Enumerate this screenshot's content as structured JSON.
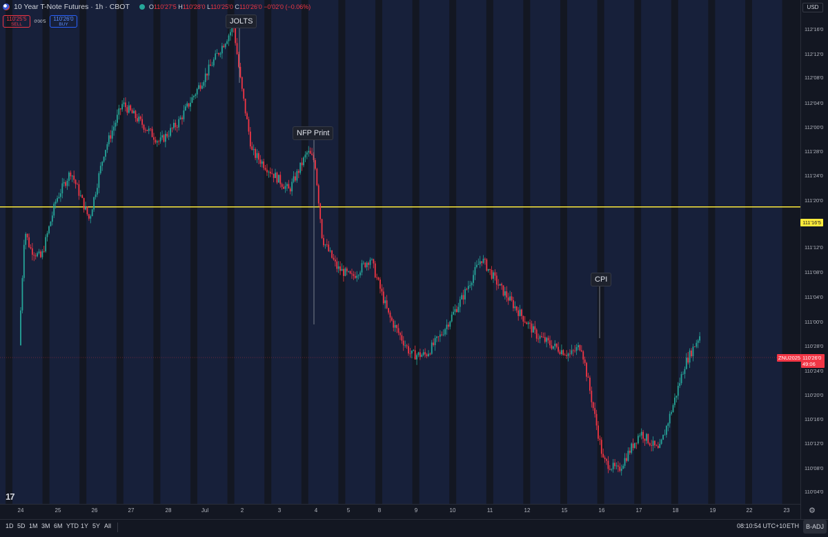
{
  "header": {
    "title": "10 Year T-Note Futures · 1h · CBOT",
    "ohlc_label": "O",
    "open": "110'27'5",
    "high_label": "H",
    "high": "110'28'0",
    "low_label": "L",
    "low": "110'25'0",
    "close_label": "C",
    "close": "110'26'0",
    "change": "−0'02'0 (−0.06%)"
  },
  "trade": {
    "sell_price": "110'25'5",
    "sell_label": "SELL",
    "spread": "0'00'5",
    "buy_price": "110'26'0",
    "buy_label": "BUY"
  },
  "annotations": {
    "jolts": "JOLTS",
    "nfp": "NFP Print",
    "cpi": "CPI"
  },
  "price_axis": {
    "currency": "USD",
    "ticks": [
      "112'16'0",
      "112'12'0",
      "112'08'0",
      "112'04'0",
      "112'00'0",
      "111'28'0",
      "111'24'0",
      "111'20'0",
      "111'16'5",
      "111'12'0",
      "111'08'0",
      "111'04'0",
      "111'00'0",
      "110'28'0",
      "110'24'0",
      "110'20'0",
      "110'16'0",
      "110'12'0",
      "110'08'0",
      "110'04'0"
    ],
    "line_label": "111'16'5",
    "symbol": "ZNU2025",
    "last_price": "110'26'0",
    "countdown": "49:06"
  },
  "time_axis": [
    "24",
    "25",
    "26",
    "27",
    "28",
    "Jul",
    "2",
    "3",
    "4",
    "5",
    "8",
    "9",
    "10",
    "11",
    "12",
    "15",
    "16",
    "17",
    "18",
    "19",
    "22",
    "23"
  ],
  "bottom_bar": {
    "ranges": [
      "1D",
      "5D",
      "1M",
      "3M",
      "6M",
      "YTD",
      "1Y",
      "5Y",
      "All"
    ],
    "clock": "08:10:54 UTC+10",
    "session": "ETH",
    "adjust": "B-ADJ"
  },
  "colors": {
    "background": "#131722",
    "session_band": "#17203a",
    "up": "#26a69a",
    "down": "#f23645",
    "level_line": "#ffeb3b"
  },
  "chart_data": {
    "type": "candlestick",
    "y_unit": "price (32nds)",
    "ylim": [
      110.05,
      112.55
    ],
    "horizontal_level": 111.515,
    "path": [
      [
        24,
        110.8
      ],
      [
        24.15,
        111.4
      ],
      [
        24.3,
        111.3
      ],
      [
        24.6,
        111.25
      ],
      [
        25,
        111.55
      ],
      [
        25.4,
        111.7
      ],
      [
        25.9,
        111.45
      ],
      [
        26.3,
        111.8
      ],
      [
        26.8,
        112.05
      ],
      [
        27.3,
        111.95
      ],
      [
        27.8,
        111.85
      ],
      [
        28.3,
        111.95
      ],
      [
        28.9,
        112.15
      ],
      [
        29.8,
        112.45
      ],
      [
        30,
        112.15
      ],
      [
        30.3,
        111.8
      ],
      [
        30.8,
        111.7
      ],
      [
        31.3,
        111.6
      ],
      [
        31.8,
        111.8
      ],
      [
        32,
        111.75
      ],
      [
        32.2,
        111.35
      ],
      [
        32.6,
        111.2
      ],
      [
        33,
        111.15
      ],
      [
        33.5,
        111.25
      ],
      [
        34,
        110.95
      ],
      [
        34.6,
        110.75
      ],
      [
        35,
        110.75
      ],
      [
        35.4,
        110.85
      ],
      [
        36,
        111.05
      ],
      [
        36.5,
        111.25
      ],
      [
        37,
        111.1
      ],
      [
        37.6,
        110.95
      ],
      [
        38,
        110.85
      ],
      [
        38.4,
        110.8
      ],
      [
        38.9,
        110.75
      ],
      [
        39.2,
        110.8
      ],
      [
        39.8,
        110.2
      ],
      [
        40.2,
        110.15
      ],
      [
        40.8,
        110.35
      ],
      [
        41.3,
        110.25
      ],
      [
        41.7,
        110.5
      ],
      [
        42,
        110.7
      ],
      [
        42.4,
        110.85
      ]
    ]
  }
}
